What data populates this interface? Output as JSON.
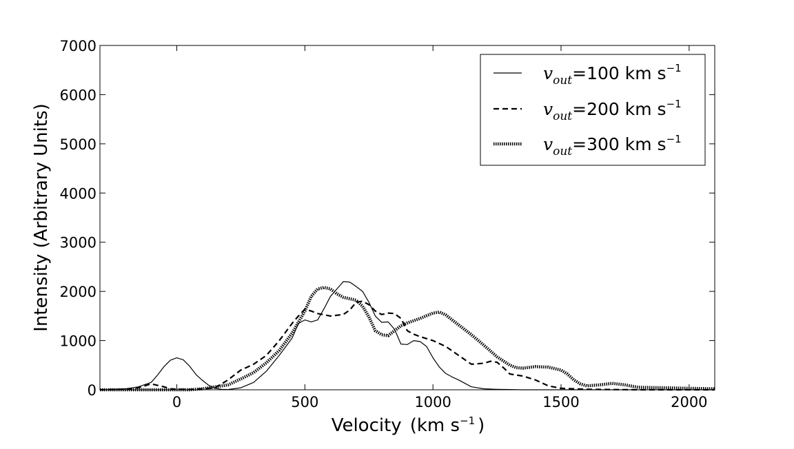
{
  "chart_data": {
    "type": "line",
    "title": "",
    "xlabel": "Velocity",
    "xlabel_unit": "(km s",
    "xlabel_unit_exp": "−1",
    "xlabel_unit_close": ")",
    "ylabel": "Intensity (Arbitrary Units)",
    "xlim": [
      -300,
      2100
    ],
    "ylim": [
      0,
      7000
    ],
    "xticks": [
      0,
      500,
      1000,
      1500,
      2000
    ],
    "yticks": [
      0,
      1000,
      2000,
      3000,
      4000,
      5000,
      6000,
      7000
    ],
    "grid": false,
    "legend_position": "top-right",
    "series": [
      {
        "name": "vout=100 km s−1",
        "legend_var": "v",
        "legend_sub": "out",
        "legend_value": "=100 km s",
        "legend_exp": "−1",
        "style": "solid",
        "x": [
          -300,
          -250,
          -200,
          -150,
          -100,
          -75,
          -50,
          -25,
          0,
          25,
          50,
          75,
          100,
          125,
          150,
          175,
          200,
          250,
          300,
          350,
          400,
          450,
          475,
          500,
          525,
          550,
          575,
          600,
          625,
          650,
          675,
          700,
          725,
          750,
          775,
          800,
          825,
          850,
          875,
          900,
          925,
          950,
          975,
          1000,
          1025,
          1050,
          1075,
          1100,
          1150,
          1200,
          1250,
          1300,
          1350,
          1400,
          1450,
          1500,
          1600,
          1800,
          2100
        ],
        "y": [
          0,
          5,
          20,
          60,
          150,
          300,
          470,
          600,
          650,
          610,
          480,
          310,
          190,
          90,
          30,
          10,
          5,
          40,
          150,
          380,
          700,
          1050,
          1350,
          1420,
          1380,
          1420,
          1650,
          1900,
          2050,
          2200,
          2190,
          2100,
          2000,
          1780,
          1500,
          1370,
          1380,
          1230,
          930,
          920,
          1000,
          980,
          880,
          650,
          460,
          330,
          260,
          200,
          60,
          20,
          10,
          5,
          0,
          0,
          0,
          0,
          0,
          0,
          0
        ]
      },
      {
        "name": "vout=200 km s−1",
        "legend_var": "v",
        "legend_sub": "out",
        "legend_value": "=200 km s",
        "legend_exp": "−1",
        "style": "dashed",
        "x": [
          -300,
          -200,
          -150,
          -100,
          -50,
          -25,
          0,
          50,
          100,
          150,
          200,
          250,
          300,
          350,
          400,
          450,
          475,
          500,
          525,
          550,
          600,
          650,
          675,
          700,
          725,
          750,
          775,
          800,
          825,
          850,
          875,
          900,
          925,
          950,
          1000,
          1050,
          1100,
          1150,
          1200,
          1225,
          1250,
          1275,
          1300,
          1350,
          1400,
          1450,
          1500,
          1600,
          1800,
          2100
        ],
        "y": [
          0,
          10,
          40,
          120,
          60,
          20,
          10,
          5,
          20,
          40,
          200,
          400,
          520,
          700,
          1000,
          1350,
          1500,
          1640,
          1600,
          1550,
          1500,
          1530,
          1620,
          1780,
          1800,
          1730,
          1600,
          1530,
          1560,
          1550,
          1450,
          1200,
          1130,
          1080,
          1000,
          880,
          700,
          520,
          540,
          580,
          560,
          450,
          320,
          280,
          200,
          80,
          30,
          10,
          0,
          0
        ]
      },
      {
        "name": "vout=300 km s−1",
        "legend_var": "v",
        "legend_sub": "out",
        "legend_value": "=300 km s",
        "legend_exp": "−1",
        "style": "dotted",
        "x": [
          -300,
          -200,
          -100,
          0,
          50,
          100,
          150,
          200,
          250,
          300,
          350,
          400,
          450,
          500,
          525,
          550,
          575,
          600,
          625,
          650,
          700,
          725,
          750,
          775,
          800,
          825,
          850,
          875,
          900,
          950,
          1000,
          1025,
          1050,
          1100,
          1150,
          1200,
          1250,
          1300,
          1325,
          1350,
          1400,
          1450,
          1500,
          1525,
          1550,
          1575,
          1600,
          1650,
          1700,
          1750,
          1800,
          1900,
          2000,
          2100
        ],
        "y": [
          0,
          0,
          0,
          0,
          0,
          20,
          60,
          100,
          220,
          350,
          550,
          800,
          1150,
          1600,
          1900,
          2050,
          2080,
          2050,
          1950,
          1880,
          1820,
          1700,
          1480,
          1200,
          1120,
          1100,
          1200,
          1300,
          1360,
          1450,
          1560,
          1580,
          1520,
          1320,
          1120,
          900,
          670,
          500,
          450,
          440,
          470,
          460,
          400,
          320,
          200,
          120,
          80,
          100,
          130,
          100,
          50,
          40,
          30,
          20
        ]
      }
    ]
  }
}
